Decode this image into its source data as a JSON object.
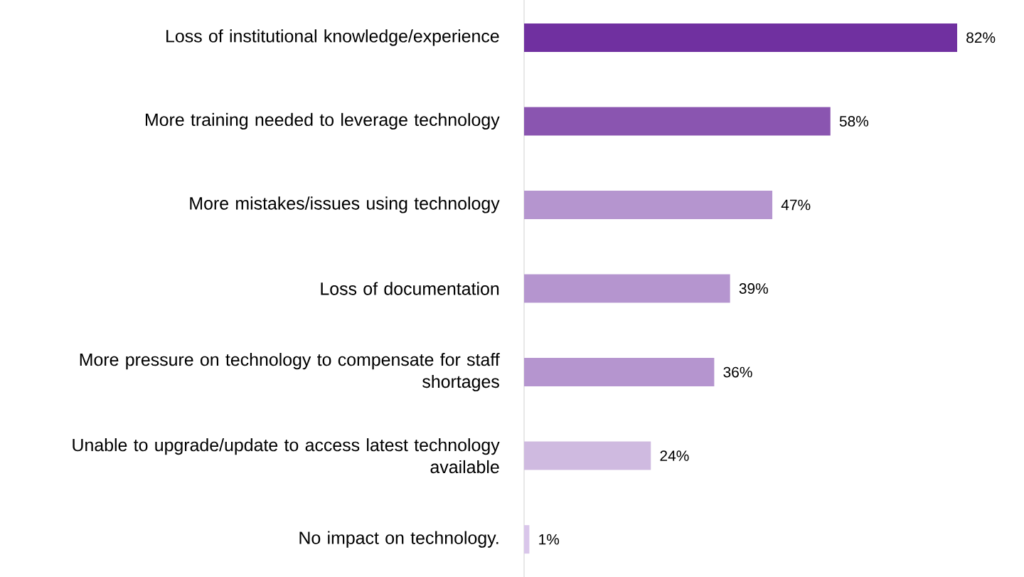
{
  "chart_data": {
    "type": "bar",
    "orientation": "horizontal",
    "categories": [
      "Loss of institutional knowledge/experience",
      "More training needed to leverage technology",
      "More mistakes/issues using technology",
      "Loss of documentation",
      "More pressure on technology to compensate for staff shortages",
      "Unable to upgrade/update to access latest technology available",
      "No impact on technology."
    ],
    "values": [
      82,
      58,
      47,
      39,
      36,
      24,
      1
    ],
    "value_labels": [
      "82%",
      "58%",
      "47%",
      "39%",
      "36%",
      "24%",
      "1%"
    ],
    "colors": [
      "#7030a0",
      "#8a55b0",
      "#b595cf",
      "#b595cf",
      "#b595cf",
      "#cfbae0",
      "#d9c6ea"
    ]
  }
}
